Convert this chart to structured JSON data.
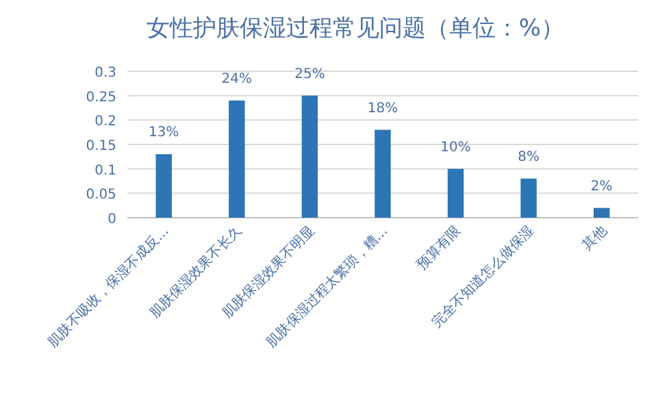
{
  "chart_data": {
    "type": "bar",
    "title": "女性护肤保湿过程常见问题（单位：%）",
    "categories": [
      "肌肤不吸收，保湿不成反…",
      "肌肤保湿效果不长久",
      "肌肤保湿效果不明显",
      "肌肤保湿过程太繁琐，糟…",
      "预算有限",
      "完全不知道怎么做保湿",
      "其他"
    ],
    "values": [
      0.13,
      0.24,
      0.25,
      0.18,
      0.1,
      0.08,
      0.02
    ],
    "value_labels": [
      "13%",
      "24%",
      "25%",
      "18%",
      "10%",
      "8%",
      "2%"
    ],
    "color": "#2e75b6",
    "ylim": [
      0,
      0.3
    ],
    "yticks": [
      0,
      0.05,
      0.1,
      0.15,
      0.2,
      0.25,
      0.3
    ],
    "grid": "y"
  }
}
